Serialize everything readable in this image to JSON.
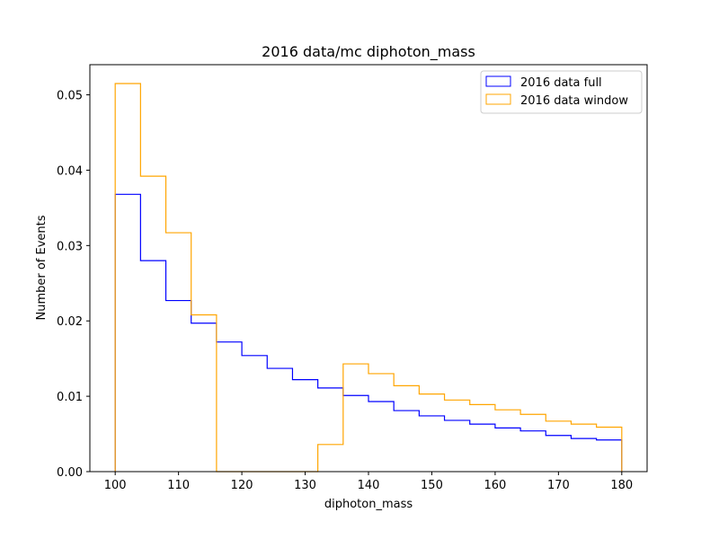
{
  "chart_data": {
    "type": "histogram",
    "title": "2016 data/mc diphoton_mass",
    "xlabel": "diphoton_mass",
    "ylabel": "Number of Events",
    "xlim": [
      96,
      184
    ],
    "ylim": [
      0,
      0.054
    ],
    "xticks": [
      100,
      110,
      120,
      130,
      140,
      150,
      160,
      170,
      180
    ],
    "yticks": [
      0.0,
      0.01,
      0.02,
      0.03,
      0.04,
      0.05
    ],
    "ytick_labels": [
      "0.00",
      "0.01",
      "0.02",
      "0.03",
      "0.04",
      "0.05"
    ],
    "bin_edges": [
      100,
      104,
      108,
      112,
      116,
      120,
      124,
      128,
      132,
      136,
      140,
      144,
      148,
      152,
      156,
      160,
      164,
      168,
      172,
      176,
      180
    ],
    "legend_position": "top-right",
    "grid": false,
    "series": [
      {
        "name": "2016 data full",
        "color": "#0000ff",
        "values": [
          0.0368,
          0.028,
          0.0227,
          0.0197,
          0.0172,
          0.0154,
          0.0137,
          0.0122,
          0.0111,
          0.0101,
          0.0093,
          0.0081,
          0.0074,
          0.0068,
          0.0063,
          0.0058,
          0.0054,
          0.0048,
          0.0044,
          0.0042
        ]
      },
      {
        "name": "2016 data window",
        "color": "#ffa500",
        "values": [
          0.0515,
          0.0392,
          0.0317,
          0.0208,
          0.0,
          0.0,
          0.0,
          0.0,
          0.0036,
          0.0143,
          0.013,
          0.0114,
          0.0103,
          0.0095,
          0.0089,
          0.0082,
          0.0076,
          0.0067,
          0.0063,
          0.0059
        ]
      }
    ]
  }
}
